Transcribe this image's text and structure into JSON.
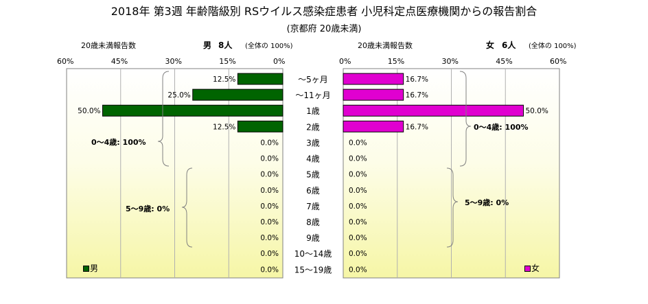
{
  "title": "2018年 第3週 年齢階級別 RSウイルス感染症患者 小児科定点医療機関からの報告割合",
  "subtitle": "(京都府 20歳未満)",
  "left": {
    "header": "20歳未満報告数",
    "sex_label": "男",
    "count_label": "8人",
    "share_label": "(全体の 100%)",
    "legend": "男",
    "color": "#006400"
  },
  "right": {
    "header": "20歳未満報告数",
    "sex_label": "女",
    "count_label": "6人",
    "share_label": "(全体の 100%)",
    "legend": "女",
    "color": "#e000d0"
  },
  "brackets": {
    "left_a": "0〜4歳: 100%",
    "left_b": "5〜9歳: 0%",
    "right_a": "0〜4歳: 100%",
    "right_b": "5〜9歳: 0%"
  },
  "chart_data": {
    "type": "bar",
    "orientation": "horizontal-butterfly",
    "categories": [
      "〜5ヶ月",
      "〜11ヶ月",
      "1歳",
      "2歳",
      "3歳",
      "4歳",
      "5歳",
      "6歳",
      "7歳",
      "8歳",
      "9歳",
      "10〜14歳",
      "15〜19歳"
    ],
    "series": [
      {
        "name": "男",
        "values": [
          12.5,
          25.0,
          50.0,
          12.5,
          0.0,
          0.0,
          0.0,
          0.0,
          0.0,
          0.0,
          0.0,
          0.0,
          0.0
        ]
      },
      {
        "name": "女",
        "values": [
          16.7,
          16.7,
          50.0,
          16.7,
          0.0,
          0.0,
          0.0,
          0.0,
          0.0,
          0.0,
          0.0,
          0.0,
          0.0
        ]
      }
    ],
    "xlim": [
      0,
      60
    ],
    "ticks": [
      0,
      15,
      30,
      45,
      60
    ],
    "tick_labels": [
      "0%",
      "15%",
      "30%",
      "45%",
      "60%"
    ],
    "value_labels_left": [
      "12.5%",
      "25.0%",
      "50.0%",
      "12.5%",
      "0.0%",
      "0.0%",
      "0.0%",
      "0.0%",
      "0.0%",
      "0.0%",
      "0.0%",
      "0.0%",
      "0.0%"
    ],
    "value_labels_right": [
      "16.7%",
      "16.7%",
      "50.0%",
      "16.7%",
      "0.0%",
      "0.0%",
      "0.0%",
      "0.0%",
      "0.0%",
      "0.0%",
      "0.0%",
      "0.0%",
      "0.0%"
    ],
    "grid": true,
    "legend": "bottom-corners"
  }
}
